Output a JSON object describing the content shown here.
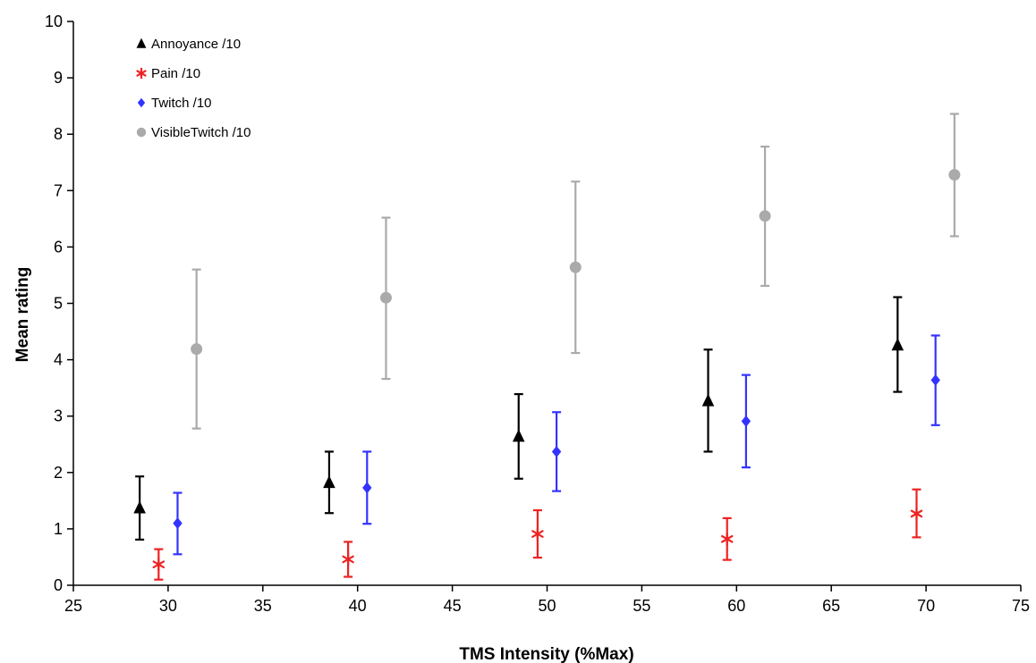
{
  "chart_data": {
    "type": "scatter",
    "title": "",
    "xlabel": "TMS Intensity (%Max)",
    "ylabel": "Mean rating",
    "xlim": [
      25,
      75
    ],
    "ylim": [
      0,
      10
    ],
    "x_ticks": [
      25,
      30,
      35,
      40,
      45,
      50,
      55,
      60,
      65,
      70,
      75
    ],
    "y_ticks": [
      0,
      1,
      2,
      3,
      4,
      5,
      6,
      7,
      8,
      9,
      10
    ],
    "grid": false,
    "legend_position": "top-left",
    "error_bars": true,
    "series": [
      {
        "name": "Annoyance /10",
        "marker": "triangle",
        "color": "#000000",
        "x": [
          28.5,
          38.5,
          48.5,
          58.5,
          68.5
        ],
        "y": [
          1.37,
          1.82,
          2.64,
          3.27,
          4.26
        ],
        "y_low": [
          0.81,
          1.28,
          1.89,
          2.37,
          3.43
        ],
        "y_high": [
          1.93,
          2.37,
          3.39,
          4.18,
          5.11
        ]
      },
      {
        "name": "Pain /10",
        "marker": "asterisk",
        "color": "#ee2222",
        "x": [
          29.5,
          39.5,
          49.5,
          59.5,
          69.5
        ],
        "y": [
          0.37,
          0.46,
          0.91,
          0.82,
          1.27
        ],
        "y_low": [
          0.1,
          0.15,
          0.49,
          0.45,
          0.85
        ],
        "y_high": [
          0.64,
          0.77,
          1.33,
          1.19,
          1.7
        ]
      },
      {
        "name": "Twitch /10",
        "marker": "diamond",
        "color": "#3333ff",
        "x": [
          30.5,
          40.5,
          50.5,
          60.5,
          70.5
        ],
        "y": [
          1.1,
          1.73,
          2.37,
          2.91,
          3.64
        ],
        "y_low": [
          0.55,
          1.09,
          1.67,
          2.09,
          2.84
        ],
        "y_high": [
          1.64,
          2.37,
          3.07,
          3.73,
          4.43
        ]
      },
      {
        "name": "VisibleTwitch /10",
        "marker": "circle",
        "color": "#aaaaaa",
        "x": [
          31.5,
          41.5,
          51.5,
          61.5,
          71.5
        ],
        "y": [
          4.19,
          5.1,
          5.64,
          6.55,
          7.28
        ],
        "y_low": [
          2.78,
          3.66,
          4.12,
          5.31,
          6.19
        ],
        "y_high": [
          5.6,
          6.52,
          7.16,
          7.78,
          8.36
        ]
      }
    ]
  }
}
